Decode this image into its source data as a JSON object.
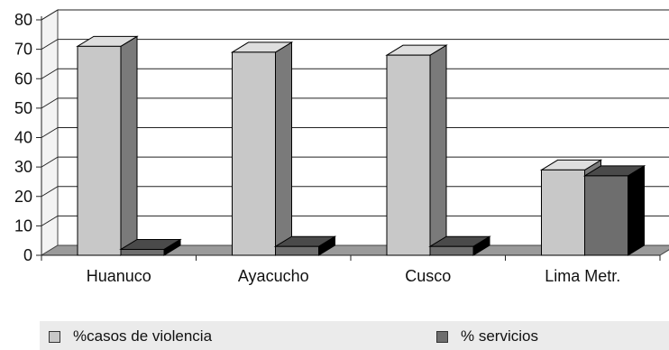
{
  "chart_data": {
    "type": "bar",
    "categories": [
      "Huanuco",
      "Ayacucho",
      "Cusco",
      "Lima Metr."
    ],
    "series": [
      {
        "name": "%casos de violencia",
        "values": [
          71,
          69,
          68,
          29
        ],
        "color": "#c8c8c8"
      },
      {
        "name": "% servicios",
        "values": [
          2,
          3,
          3,
          27
        ],
        "color": "#6e6e6e"
      }
    ],
    "yticks": [
      0,
      10,
      20,
      30,
      40,
      50,
      60,
      70,
      80
    ],
    "ylim": [
      0,
      80
    ],
    "grid": true,
    "legend_position": "bottom"
  }
}
